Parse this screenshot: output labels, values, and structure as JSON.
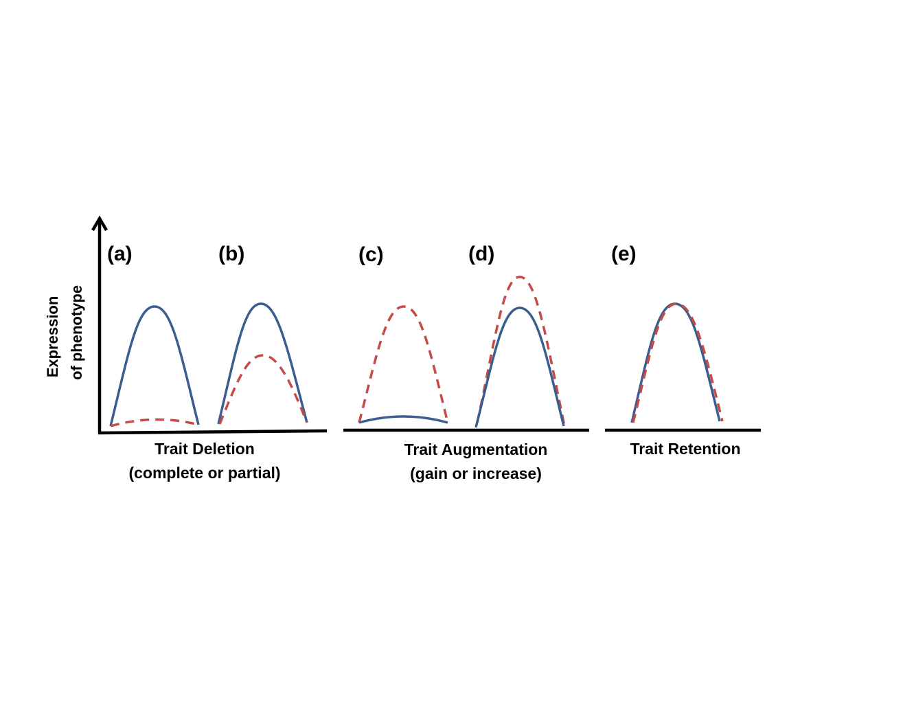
{
  "y_axis_label": [
    "Expression",
    "of phenotype"
  ],
  "panels": [
    "(a)",
    "(b)",
    "(c)",
    "(d)",
    "(e)"
  ],
  "groups": [
    {
      "title": "Trait Deletion",
      "subtitle": "(complete or partial)"
    },
    {
      "title": "Trait Augmentation",
      "subtitle": "(gain or increase)"
    },
    {
      "title": "Trait Retention"
    }
  ],
  "colors": {
    "solid_curve": "#3b5e8f",
    "dashed_curve": "#c44b47"
  }
}
